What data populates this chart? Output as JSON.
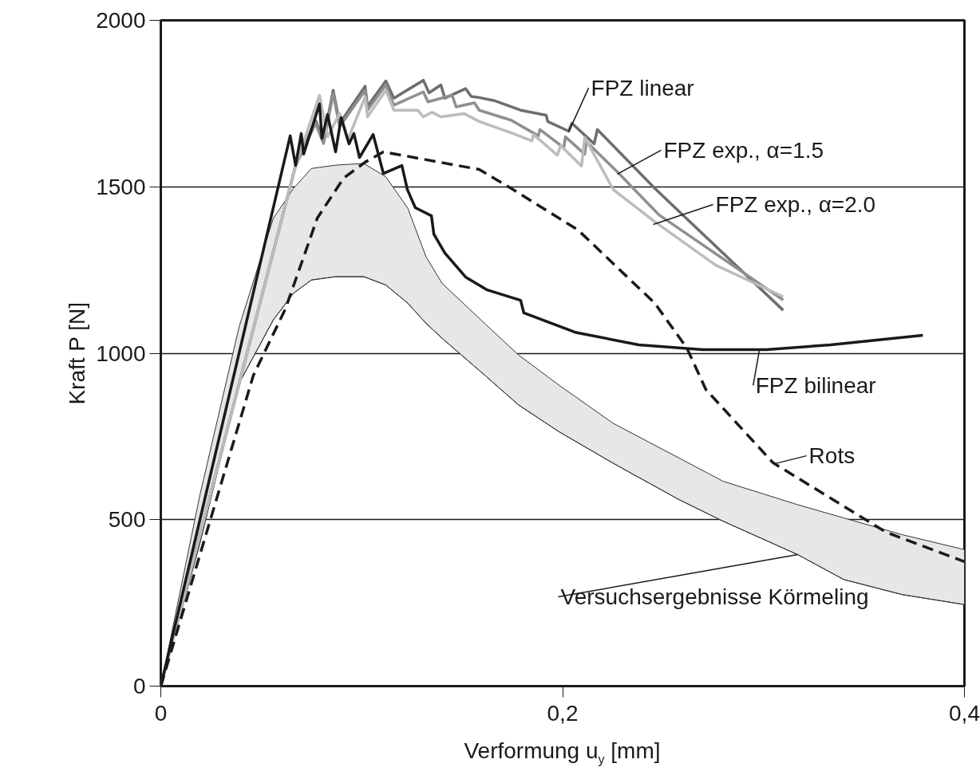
{
  "chart_data": {
    "type": "line",
    "xlabel": "Verformung u$_{y}$ [mm]",
    "ylabel": "Kraft P [N]",
    "xlim": [
      0,
      0.4
    ],
    "ylim": [
      0,
      2000
    ],
    "xticks": [
      0,
      {
        "value": 0.2,
        "label": "0,2"
      },
      {
        "value": 0.4,
        "label": "0,4"
      }
    ],
    "yticks": [
      0,
      500,
      1000,
      1500,
      2000
    ],
    "grid": "y",
    "series": [
      {
        "color": "#333333",
        "x": [
          0,
          0.0195,
          0.039,
          0.056,
          0.066,
          0.075,
          0.087,
          0.101,
          0.112,
          0.123,
          0.132,
          0.14,
          0.162,
          0.178,
          0.198,
          0.225,
          0.258,
          0.28,
          0.317,
          0.34,
          0.369,
          0.4
        ],
        "values": [
          0,
          430,
          910,
          1100,
          1180,
          1220,
          1230,
          1230,
          1205,
          1150,
          1090,
          1045,
          930,
          845,
          765,
          670,
          560,
          495,
          395,
          320,
          275,
          245
        ],
        "lower": [
          0,
          430,
          910,
          1100,
          1180,
          1220,
          1230,
          1230,
          1205,
          1150,
          1090,
          1045,
          930,
          845,
          765,
          670,
          560,
          495,
          395,
          320,
          275,
          245
        ],
        "upper": [
          0,
          575,
          1080,
          1405,
          1495,
          1555,
          1565,
          1570,
          1530,
          1435,
          1290,
          1210,
          1085,
          995,
          905,
          790,
          685,
          615,
          545,
          505,
          455,
          410
        ]
      },
      {
        "color": "#6e6e6e",
        "x": [
          0,
          0.0671,
          0.077,
          0.081,
          0.0858,
          0.089,
          0.1017,
          0.1029,
          0.112,
          0.116,
          0.1307,
          0.1335,
          0.1394,
          0.1414,
          0.1517,
          0.1545,
          0.1585,
          0.1665,
          0.1791,
          0.1918,
          0.1926,
          0.203,
          0.2046,
          0.2157,
          0.2173,
          0.2459,
          0.3098
        ],
        "values": [
          0,
          1564,
          1700,
          1640,
          1790,
          1690,
          1802,
          1742,
          1818,
          1766,
          1820,
          1782,
          1806,
          1766,
          1795,
          1771,
          1768,
          1758,
          1730,
          1715,
          1696,
          1667,
          1691,
          1629,
          1672,
          1495,
          1129
        ]
      },
      {
        "color": "#8f8f8f",
        "x": [
          0,
          0.0671,
          0.077,
          0.081,
          0.0858,
          0.089,
          0.1017,
          0.1029,
          0.112,
          0.116,
          0.1307,
          0.133,
          0.145,
          0.147,
          0.1561,
          0.1585,
          0.1744,
          0.1879,
          0.1887,
          0.2006,
          0.2014,
          0.211,
          0.2118,
          0.2272,
          0.2479,
          0.3098
        ],
        "values": [
          0,
          1564,
          1690,
          1630,
          1780,
          1680,
          1790,
          1730,
          1806,
          1745,
          1785,
          1755,
          1775,
          1740,
          1752,
          1730,
          1700,
          1653,
          1672,
          1617,
          1650,
          1598,
          1636,
          1545,
          1416,
          1160
        ]
      },
      {
        "color": "#bcbcbc",
        "x": [
          0,
          0.0671,
          0.079,
          0.083,
          0.089,
          0.093,
          0.1017,
          0.1029,
          0.112,
          0.116,
          0.1279,
          0.1307,
          0.135,
          0.1394,
          0.1509,
          0.1585,
          0.1744,
          0.1847,
          0.1855,
          0.1974,
          0.199,
          0.2094,
          0.211,
          0.2253,
          0.2459,
          0.2761,
          0.3098
        ],
        "values": [
          0,
          1564,
          1775,
          1650,
          1720,
          1640,
          1770,
          1710,
          1790,
          1730,
          1730,
          1710,
          1724,
          1710,
          1720,
          1696,
          1662,
          1638,
          1657,
          1595,
          1624,
          1562,
          1648,
          1491,
          1395,
          1265,
          1170
        ]
      },
      {
        "color": "#1a1a1a",
        "x": [
          0,
          0.0644,
          0.0671,
          0.0699,
          0.0711,
          0.079,
          0.0802,
          0.083,
          0.087,
          0.0898,
          0.0937,
          0.0961,
          0.0989,
          0.1057,
          0.1108,
          0.12,
          0.1227,
          0.1267,
          0.1347,
          0.1359,
          0.1414,
          0.1517,
          0.1625,
          0.1791,
          0.1807,
          0.2062,
          0.2379,
          0.2697,
          0.3015,
          0.3333,
          0.3793
        ],
        "values": [
          0,
          1653,
          1564,
          1660,
          1598,
          1749,
          1646,
          1717,
          1605,
          1708,
          1629,
          1660,
          1588,
          1657,
          1540,
          1564,
          1492,
          1437,
          1413,
          1358,
          1301,
          1229,
          1190,
          1159,
          1121,
          1063,
          1025,
          1011,
          1011,
          1025,
          1054
        ]
      },
      {
        "color": "#1a1a1a",
        "line_style": "dashed",
        "x": [
          0,
          0.0461,
          0.062,
          0.0779,
          0.091,
          0.1017,
          0.1108,
          0.1585,
          0.1744,
          0.2077,
          0.2459,
          0.2618,
          0.2713,
          0.3047,
          0.3611,
          0.4
        ],
        "values": [
          0,
          934,
          1133,
          1406,
          1526,
          1574,
          1605,
          1552,
          1495,
          1370,
          1150,
          1016,
          891,
          671,
          462,
          374
        ]
      }
    ],
    "annotations": [
      {
        "text": "FPZ linear",
        "x": 0.203,
        "y": 1665
      },
      {
        "text": "FPZ exp., α=1.5",
        "x": 0.2272,
        "y": 1538
      },
      {
        "text": "FPZ exp., α=2.0",
        "x": 0.2451,
        "y": 1387
      },
      {
        "text": "FPZ bilinear",
        "x": 0.298,
        "y": 1011
      },
      {
        "text": "Rots",
        "x": 0.3055,
        "y": 668
      },
      {
        "text": "Versuchsergebnisse Körmeling",
        "x": 0.317,
        "y": 395
      }
    ]
  }
}
